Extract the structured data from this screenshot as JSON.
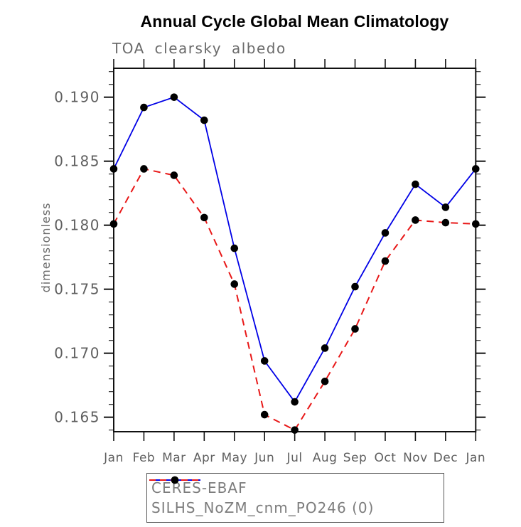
{
  "chart": {
    "title": "Annual Cycle Global Mean Climatology",
    "subtitle": "TOA clearsky albedo",
    "ylabel": "dimensionless"
  },
  "colors": {
    "title_text": "#000000",
    "subtitle_text": "#6a6a6a",
    "axis_frame": "#111111",
    "axis_tick_major": "#111111",
    "axis_tick_minor": "#333333",
    "axis_label_text": "#5f5f5f",
    "legend_text": "#7d7d7d",
    "marker": "#000000",
    "series_blue": "#0000e6",
    "series_red": "#e81717"
  },
  "chart_data": {
    "type": "line",
    "title": "Annual Cycle Global Mean Climatology",
    "subtitle": "TOA clearsky albedo",
    "xlabel": "",
    "ylabel": "dimensionless",
    "categories": [
      "Jan",
      "Feb",
      "Mar",
      "Apr",
      "May",
      "Jun",
      "Jul",
      "Aug",
      "Sep",
      "Oct",
      "Nov",
      "Dec",
      "Jan"
    ],
    "y_tick_labels": [
      "0.190",
      "0.185",
      "0.180",
      "0.175",
      "0.170",
      "0.165"
    ],
    "y_ticks": [
      0.19,
      0.185,
      0.18,
      0.175,
      0.17,
      0.165
    ],
    "y_minor_step": 0.001,
    "ylim": [
      0.16387,
      0.19226
    ],
    "grid": false,
    "legend_position": "bottom",
    "series": [
      {
        "name": "CERES-EBAF",
        "color": "#0000e6",
        "style": "solid",
        "marker": "black-dot",
        "values": [
          0.1844,
          0.1892,
          0.19,
          0.1882,
          0.1782,
          0.1694,
          0.1662,
          0.1704,
          0.1752,
          0.1794,
          0.1832,
          0.1814,
          0.1844
        ]
      },
      {
        "name": "SILHS_NoZM_cnm_PO246 (0)",
        "color": "#e81717",
        "style": "dashed",
        "marker": "black-dot",
        "values": [
          0.1801,
          0.1844,
          0.1839,
          0.1806,
          0.1754,
          0.1652,
          0.164,
          0.1678,
          0.1719,
          0.1772,
          0.1804,
          0.1802,
          0.1801
        ]
      }
    ]
  }
}
